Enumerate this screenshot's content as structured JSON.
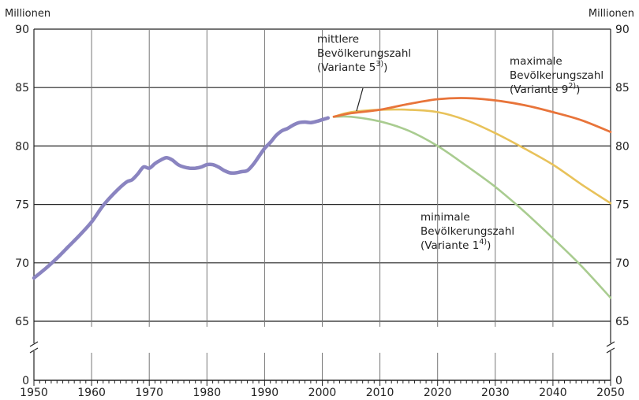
{
  "chart_data": {
    "type": "line",
    "ylabel_left": "Millionen",
    "ylabel_right": "Millionen",
    "xlim": [
      1950,
      2050
    ],
    "ylim": [
      65,
      90
    ],
    "y_break_value": 0,
    "x_ticks": [
      1950,
      1960,
      1970,
      1980,
      1990,
      2000,
      2010,
      2020,
      2030,
      2040,
      2050
    ],
    "y_ticks": [
      65,
      70,
      75,
      80,
      85,
      90
    ],
    "grid": true,
    "colors": {
      "historical": "#8a84c0",
      "medium": "#e8c25a",
      "maximum": "#e8743a",
      "minimum": "#a9cc90"
    },
    "series": [
      {
        "key": "historical",
        "x": [
          1950,
          1952,
          1954,
          1956,
          1958,
          1960,
          1962,
          1964,
          1966,
          1967,
          1968,
          1969,
          1970,
          1971,
          1972,
          1973,
          1974,
          1975,
          1976,
          1977,
          1978,
          1979,
          1980,
          1981,
          1982,
          1983,
          1984,
          1985,
          1986,
          1987,
          1988,
          1989,
          1990,
          1991,
          1992,
          1993,
          1994,
          1995,
          1996,
          1997,
          1998,
          1999,
          2000,
          2001
        ],
        "values": [
          68.7,
          69.5,
          70.4,
          71.4,
          72.4,
          73.5,
          74.9,
          76.0,
          76.9,
          77.1,
          77.6,
          78.2,
          78.1,
          78.5,
          78.8,
          79.0,
          78.8,
          78.4,
          78.2,
          78.1,
          78.1,
          78.2,
          78.4,
          78.4,
          78.2,
          77.9,
          77.7,
          77.7,
          77.8,
          77.9,
          78.4,
          79.1,
          79.8,
          80.3,
          80.9,
          81.3,
          81.5,
          81.8,
          82.0,
          82.05,
          82.0,
          82.1,
          82.25,
          82.4
        ]
      },
      {
        "key": "medium",
        "x": [
          2002,
          2005,
          2010,
          2015,
          2020,
          2025,
          2030,
          2035,
          2040,
          2045,
          2050
        ],
        "values": [
          82.5,
          82.9,
          83.1,
          83.1,
          82.9,
          82.2,
          81.1,
          79.8,
          78.4,
          76.7,
          75.1
        ]
      },
      {
        "key": "maximum",
        "x": [
          2002,
          2005,
          2010,
          2015,
          2020,
          2025,
          2030,
          2035,
          2040,
          2045,
          2050
        ],
        "values": [
          82.5,
          82.8,
          83.1,
          83.6,
          84.0,
          84.1,
          83.9,
          83.5,
          82.9,
          82.2,
          81.2
        ]
      },
      {
        "key": "minimum",
        "x": [
          2002,
          2005,
          2010,
          2015,
          2020,
          2025,
          2030,
          2035,
          2040,
          2045,
          2050
        ],
        "values": [
          82.5,
          82.5,
          82.1,
          81.3,
          80.0,
          78.3,
          76.5,
          74.4,
          72.1,
          69.7,
          67.0
        ]
      }
    ],
    "annotations": [
      {
        "key": "medium",
        "lines": [
          "mittlere",
          "Bevölkerungszahl"
        ],
        "last_line_prefix": "(Variante 5",
        "sup": "3)",
        "last_line_suffix": ")"
      },
      {
        "key": "maximum",
        "lines": [
          "maximale",
          "Bevölkerungszahl"
        ],
        "last_line_prefix": "(Variante 9",
        "sup": "2)",
        "last_line_suffix": ")"
      },
      {
        "key": "minimum",
        "lines": [
          "minimale",
          "Bevölkerungszahl"
        ],
        "last_line_prefix": "(Variante 1",
        "sup": "4)",
        "last_line_suffix": ")"
      }
    ]
  }
}
